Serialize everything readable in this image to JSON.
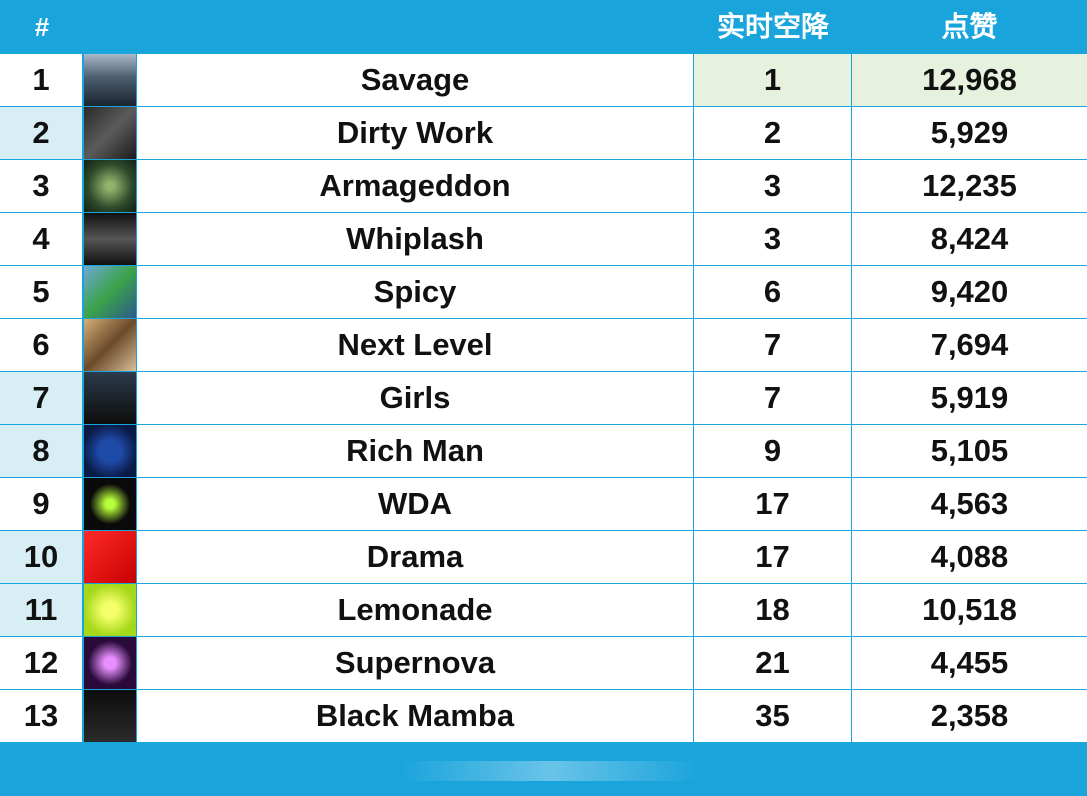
{
  "header": {
    "rank": "#",
    "title": "",
    "drop": "实时空降",
    "likes": "点赞"
  },
  "rows": [
    {
      "rank": "1",
      "title": "Savage",
      "drop": "1",
      "likes": "12,968",
      "cover": "savage-cover-icon"
    },
    {
      "rank": "2",
      "title": "Dirty Work",
      "drop": "2",
      "likes": "5,929",
      "cover": "dirty-work-cover-icon"
    },
    {
      "rank": "3",
      "title": "Armageddon",
      "drop": "3",
      "likes": "12,235",
      "cover": "armageddon-cover-icon"
    },
    {
      "rank": "4",
      "title": "Whiplash",
      "drop": "3",
      "likes": "8,424",
      "cover": "whiplash-cover-icon"
    },
    {
      "rank": "5",
      "title": "Spicy",
      "drop": "6",
      "likes": "9,420",
      "cover": "spicy-cover-icon"
    },
    {
      "rank": "6",
      "title": "Next Level",
      "drop": "7",
      "likes": "7,694",
      "cover": "next-level-cover-icon"
    },
    {
      "rank": "7",
      "title": "Girls",
      "drop": "7",
      "likes": "5,919",
      "cover": "girls-cover-icon"
    },
    {
      "rank": "8",
      "title": "Rich Man",
      "drop": "9",
      "likes": "5,105",
      "cover": "rich-man-cover-icon"
    },
    {
      "rank": "9",
      "title": "WDA",
      "drop": "17",
      "likes": "4,563",
      "cover": "wda-cover-icon"
    },
    {
      "rank": "10",
      "title": "Drama",
      "drop": "17",
      "likes": "4,088",
      "cover": "drama-cover-icon"
    },
    {
      "rank": "11",
      "title": "Lemonade",
      "drop": "18",
      "likes": "10,518",
      "cover": "lemonade-cover-icon"
    },
    {
      "rank": "12",
      "title": "Supernova",
      "drop": "21",
      "likes": "4,455",
      "cover": "supernova-cover-icon"
    },
    {
      "rank": "13",
      "title": "Black Mamba",
      "drop": "35",
      "likes": "2,358",
      "cover": "black-mamba-cover-icon"
    }
  ],
  "colors": {
    "accent": "#1aa4dc",
    "alt_rank_bg": "#d8eef5",
    "highlight_bg": "#e6f1de"
  }
}
